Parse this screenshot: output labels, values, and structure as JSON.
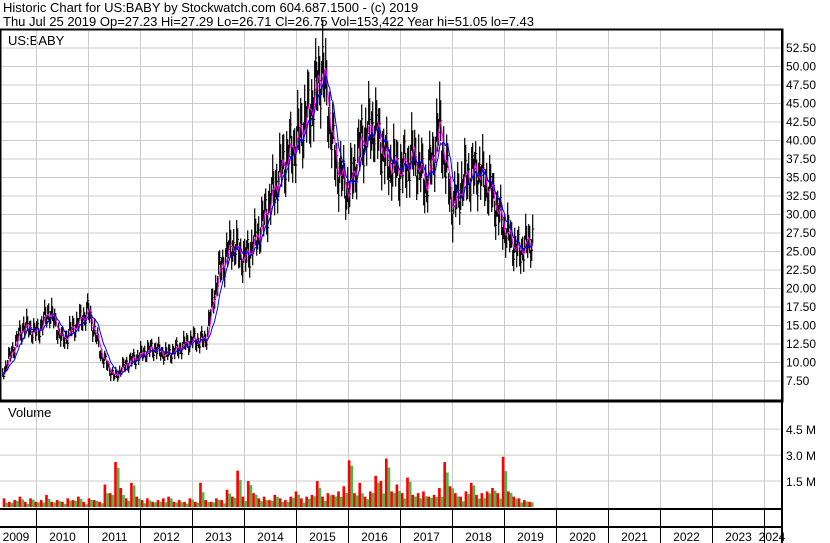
{
  "header": {
    "title": "Historic Chart for US:BABY by Stockwatch.com 604.687.1500 - (c) 2019",
    "quote": "Thu Jul 25 2019   Op=27.23  Hi=27.29  Lo=26.71   Cl=26.75  Vol=153,422   Year hi=51.05   lo=7.43"
  },
  "chart_data": [
    {
      "type": "line",
      "title": "US:BABY",
      "y_ticks": [
        "52.50",
        "50.00",
        "47.50",
        "45.00",
        "42.50",
        "40.00",
        "37.50",
        "35.00",
        "32.50",
        "30.00",
        "27.50",
        "25.00",
        "22.50",
        "20.00",
        "17.50",
        "15.00",
        "12.50",
        "10.00",
        "7.50"
      ],
      "ylim": [
        7.5,
        52.5
      ],
      "grid": true,
      "x_ticks": [
        "2009",
        "2010",
        "2011",
        "2012",
        "2013",
        "2014",
        "2015",
        "2016",
        "2017",
        "2018",
        "2019",
        "2020",
        "2021",
        "2022",
        "2023",
        "2024"
      ],
      "series_colors": {
        "price": "#000000",
        "short_ma": "#ff00ff",
        "long_ma": "#0000ff"
      },
      "x": [
        2009.35,
        2009.5,
        2009.75,
        2010.0,
        2010.25,
        2010.5,
        2010.75,
        2011.0,
        2011.25,
        2011.5,
        2011.75,
        2012.0,
        2012.25,
        2012.5,
        2012.75,
        2013.0,
        2013.25,
        2013.5,
        2013.75,
        2014.0,
        2014.25,
        2014.5,
        2014.75,
        2015.0,
        2015.25,
        2015.5,
        2015.75,
        2016.0,
        2016.25,
        2016.5,
        2016.75,
        2017.0,
        2017.25,
        2017.5,
        2017.75,
        2018.0,
        2018.25,
        2018.5,
        2018.75,
        2019.0,
        2019.25,
        2019.56
      ],
      "close": [
        8.5,
        11,
        15,
        14,
        17,
        13,
        15,
        17,
        11,
        8,
        10,
        11,
        12,
        11,
        12,
        13,
        13,
        22,
        26,
        24,
        27,
        32,
        37,
        40,
        44,
        50,
        37,
        33,
        40,
        42,
        37,
        36,
        38,
        34,
        42,
        31,
        35,
        36,
        33,
        28,
        25,
        26.75
      ]
    },
    {
      "type": "bar",
      "title": "Volume",
      "y_ticks": [
        "4.5 M",
        "3.0 M",
        "1.5 M"
      ],
      "ylim": [
        0,
        6
      ],
      "colors": {
        "up": "#4cb84c",
        "down": "#ff0000"
      },
      "x_start": 2009.35,
      "x_end": 2019.56,
      "values": [
        0.5,
        0.3,
        0.4,
        0.6,
        0.3,
        0.5,
        0.3,
        0.4,
        0.7,
        0.3,
        0.4,
        0.3,
        0.5,
        0.4,
        0.6,
        0.3,
        0.5,
        0.4,
        0.3,
        1.3,
        0.8,
        2.6,
        1.1,
        0.5,
        1.4,
        0.6,
        0.4,
        0.5,
        0.3,
        0.4,
        0.5,
        0.6,
        0.3,
        0.4,
        0.3,
        0.5,
        0.3,
        1.4,
        0.4,
        0.3,
        0.5,
        0.4,
        1.0,
        0.6,
        2.1,
        0.6,
        1.5,
        0.8,
        0.5,
        0.6,
        0.4,
        0.7,
        0.5,
        0.4,
        0.6,
        0.9,
        0.5,
        0.6,
        0.7,
        1.5,
        0.6,
        0.8,
        0.7,
        0.9,
        1.2,
        2.7,
        0.8,
        1.4,
        0.6,
        0.9,
        1.8,
        1.5,
        2.8,
        0.9,
        1.3,
        0.8,
        1.7,
        0.7,
        0.8,
        0.9,
        0.6,
        0.7,
        1.1,
        2.6,
        1.2,
        0.8,
        0.6,
        0.9,
        1.4,
        0.7,
        0.8,
        0.9,
        1.1,
        0.8,
        2.9,
        0.9,
        0.6,
        0.5,
        0.4,
        0.3
      ]
    }
  ]
}
